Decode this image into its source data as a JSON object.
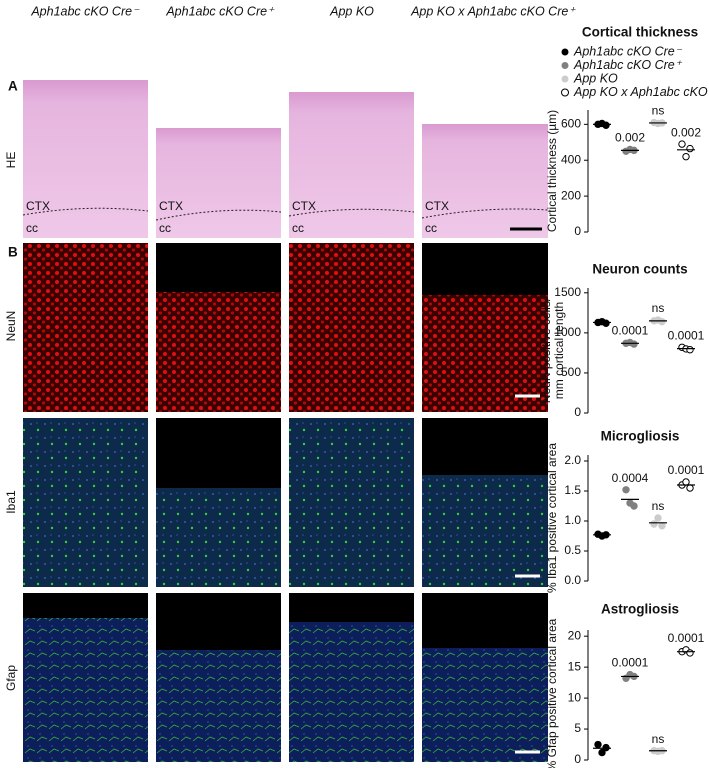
{
  "columns": [
    "Aph1abc cKO Cre⁻",
    "Aph1abc cKO Cre⁺",
    "App KO",
    "App KO x Aph1abc cKO Cre⁺"
  ],
  "panels": [
    "A",
    "B"
  ],
  "rows": [
    "HE",
    "NeuN",
    "Iba1",
    "Gfap"
  ],
  "region_labels": [
    "CTX",
    "cc"
  ],
  "legend": [
    {
      "name": "Aph1abc cKO Cre⁻",
      "color": "#000000"
    },
    {
      "name": "Aph1abc cKO Cre⁺",
      "color": "#808080"
    },
    {
      "name": "App KO",
      "color": "#cccccc"
    },
    {
      "name": "App KO x Aph1abc cKO Cre⁺",
      "color": "#ffffff"
    }
  ],
  "chart_data": [
    {
      "type": "scatter",
      "title": "Cortical thickness",
      "ylabel": [
        "Cortical thickness (µm)"
      ],
      "ylim": [
        0,
        680
      ],
      "yticks": [
        0,
        200,
        400,
        600
      ],
      "series": [
        {
          "color": "#000000",
          "values": [
            600,
            605,
            595
          ],
          "mean": 600
        },
        {
          "color": "#808080",
          "values": [
            450,
            460,
            455
          ],
          "mean": 455,
          "label": "0.002"
        },
        {
          "color": "#cccccc",
          "values": [
            610,
            605,
            608
          ],
          "mean": 608,
          "label": "ns"
        },
        {
          "color": "#ffffff",
          "values": [
            490,
            420,
            465
          ],
          "mean": 458,
          "label": "0.002"
        }
      ]
    },
    {
      "type": "scatter",
      "title": "Neuron counts",
      "ylabel": [
        "NeuN positive cells/",
        "mm cortical length"
      ],
      "ylim": [
        0,
        1560
      ],
      "yticks": [
        0,
        500,
        1000,
        1500
      ],
      "series": [
        {
          "color": "#000000",
          "values": [
            1130,
            1140,
            1120
          ],
          "mean": 1130
        },
        {
          "color": "#808080",
          "values": [
            870,
            880,
            860
          ],
          "mean": 870,
          "label": "0.0001"
        },
        {
          "color": "#cccccc",
          "values": [
            1150,
            1160,
            1140
          ],
          "mean": 1150,
          "label": "ns"
        },
        {
          "color": "#ffffff",
          "values": [
            820,
            800,
            790
          ],
          "mean": 803,
          "label": "0.0001"
        }
      ]
    },
    {
      "type": "scatter",
      "title": "Microgliosis",
      "ylabel": [
        "% Iba1 positive cortical area"
      ],
      "ylim": [
        0,
        2.1
      ],
      "yticks": [
        {
          "value": 0,
          "label": "0.0"
        },
        {
          "value": 0.5,
          "label": "0.5"
        },
        {
          "value": 1,
          "label": "1.0"
        },
        {
          "value": 1.5,
          "label": "1.5"
        },
        {
          "value": 2,
          "label": "2.0"
        }
      ],
      "series": [
        {
          "color": "#000000",
          "values": [
            0.78,
            0.75,
            0.77
          ],
          "mean": 0.77
        },
        {
          "color": "#808080",
          "values": [
            1.52,
            1.3,
            1.25
          ],
          "mean": 1.36,
          "label": "0.0004"
        },
        {
          "color": "#cccccc",
          "values": [
            0.95,
            1.05,
            0.92
          ],
          "mean": 0.97,
          "label": "ns"
        },
        {
          "color": "#ffffff",
          "values": [
            1.6,
            1.65,
            1.55
          ],
          "mean": 1.6,
          "label": "0.0001"
        }
      ]
    },
    {
      "type": "scatter",
      "title": "Astrogliosis",
      "ylabel": [
        "% Gfap positive cortical area"
      ],
      "ylim": [
        0,
        21
      ],
      "yticks": [
        0,
        5,
        10,
        15,
        20
      ],
      "series": [
        {
          "color": "#000000",
          "values": [
            2.5,
            1.2,
            2.0
          ],
          "mean": 1.9
        },
        {
          "color": "#808080",
          "values": [
            13.2,
            13.8,
            13.5
          ],
          "mean": 13.5,
          "label": "0.0001"
        },
        {
          "color": "#cccccc",
          "values": [
            1.5,
            1.4,
            1.5
          ],
          "mean": 1.5,
          "label": "ns"
        },
        {
          "color": "#ffffff",
          "values": [
            17.5,
            17.8,
            17.3
          ],
          "mean": 17.5,
          "label": "0.0001"
        }
      ]
    }
  ]
}
